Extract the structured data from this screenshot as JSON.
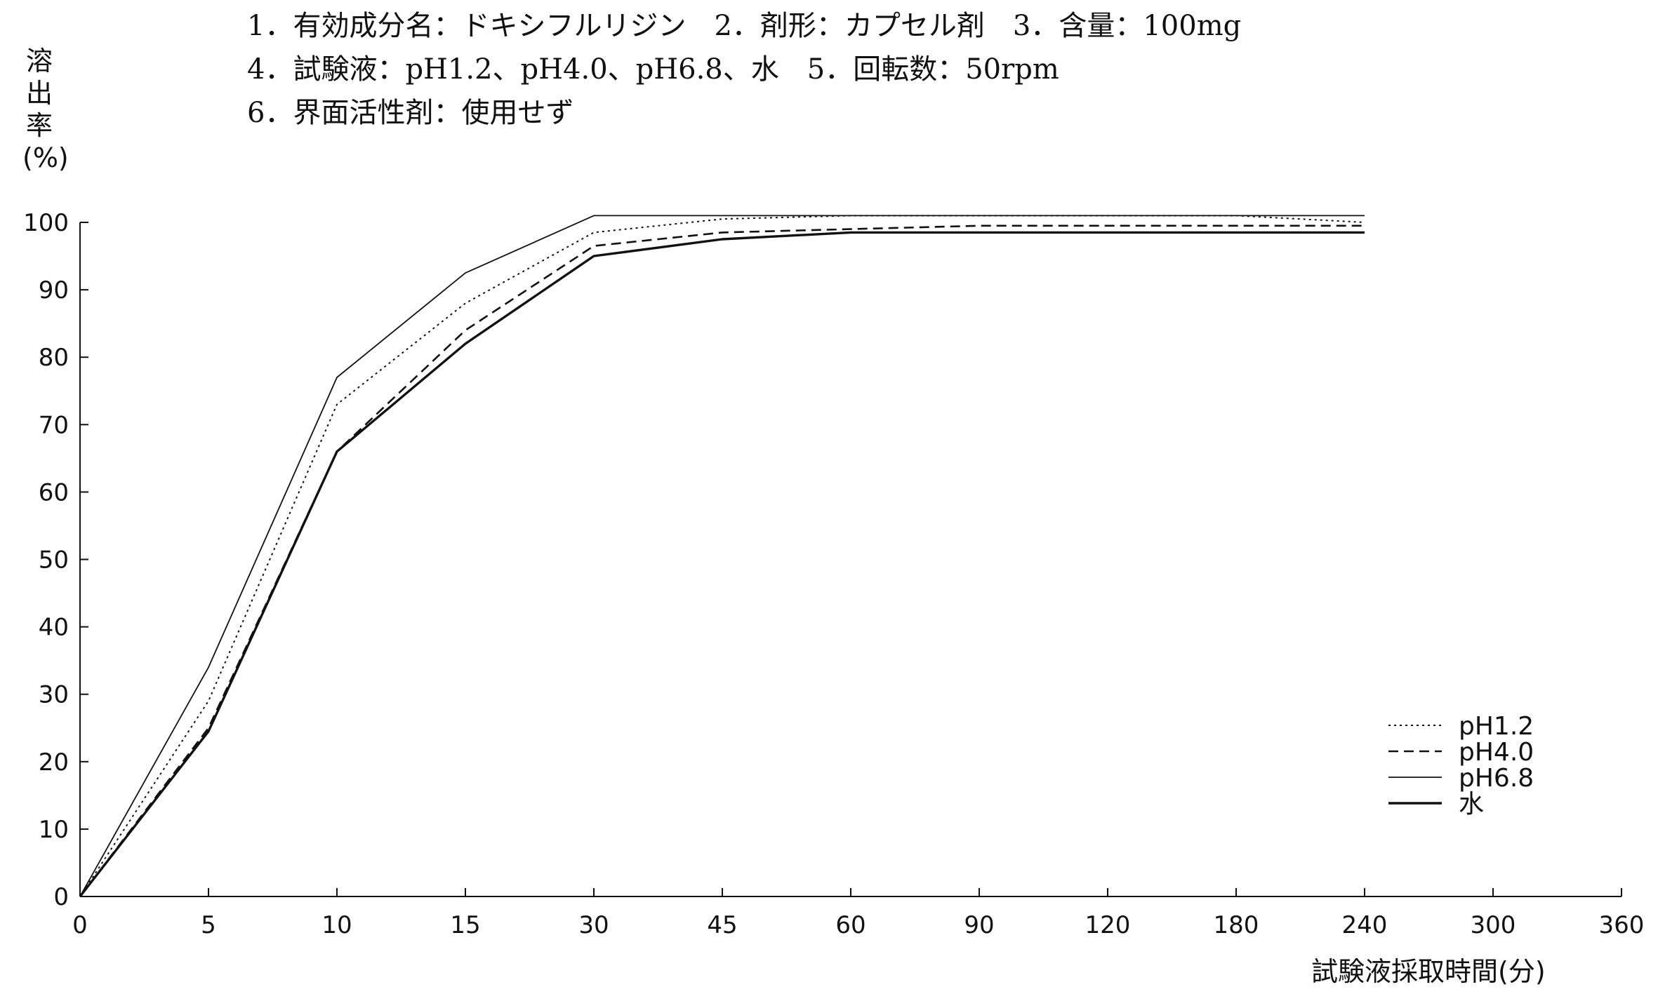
{
  "header": {
    "line1": "1．有効成分名：ドキシフルリジン　2．剤形：カプセル剤　3．含量：100mg",
    "line2": "4．試験液：pH1.2、pH4.0、pH6.8、水　5．回転数：50rpm",
    "line3": "6．界面活性剤：使用せず"
  },
  "chart_data": {
    "type": "line",
    "ylabel_chars": [
      "溶",
      "出",
      "率",
      "(%)"
    ],
    "ylabel": "溶出率(%)",
    "xlabel": "試験液採取時間(分)",
    "x_categories": [
      "0",
      "5",
      "10",
      "15",
      "30",
      "45",
      "60",
      "90",
      "120",
      "180",
      "240",
      "300",
      "360"
    ],
    "y_ticks": [
      0,
      10,
      20,
      30,
      40,
      50,
      60,
      70,
      80,
      90,
      100
    ],
    "ylim": [
      0,
      100
    ],
    "grid": false,
    "legend_position": "bottom-right",
    "series": [
      {
        "name": "pH1.2",
        "style": "dotted",
        "x": [
          "0",
          "5",
          "10",
          "15",
          "30",
          "45",
          "60",
          "90",
          "120",
          "180",
          "240"
        ],
        "values": [
          0,
          29,
          73,
          88,
          98.5,
          100.5,
          101,
          101,
          101,
          101,
          100
        ]
      },
      {
        "name": "pH4.0",
        "style": "dashed",
        "x": [
          "0",
          "5",
          "10",
          "15",
          "30",
          "45",
          "60",
          "90",
          "120",
          "180",
          "240"
        ],
        "values": [
          0,
          25,
          66,
          84,
          96.5,
          98.5,
          99,
          99.5,
          99.5,
          99.5,
          99.5
        ]
      },
      {
        "name": "pH6.8",
        "style": "thin-solid",
        "x": [
          "0",
          "5",
          "10",
          "15",
          "30",
          "45",
          "60",
          "90",
          "120",
          "180",
          "240"
        ],
        "values": [
          0,
          34,
          77,
          92.5,
          101,
          101,
          101,
          101,
          101,
          101,
          101
        ]
      },
      {
        "name": "水",
        "style": "thick-solid",
        "x": [
          "0",
          "5",
          "10",
          "15",
          "30",
          "45",
          "60",
          "90",
          "120",
          "180",
          "240"
        ],
        "values": [
          0,
          24.5,
          66,
          82,
          95,
          97.5,
          98.5,
          98.5,
          98.5,
          98.5,
          98.5
        ]
      }
    ]
  }
}
